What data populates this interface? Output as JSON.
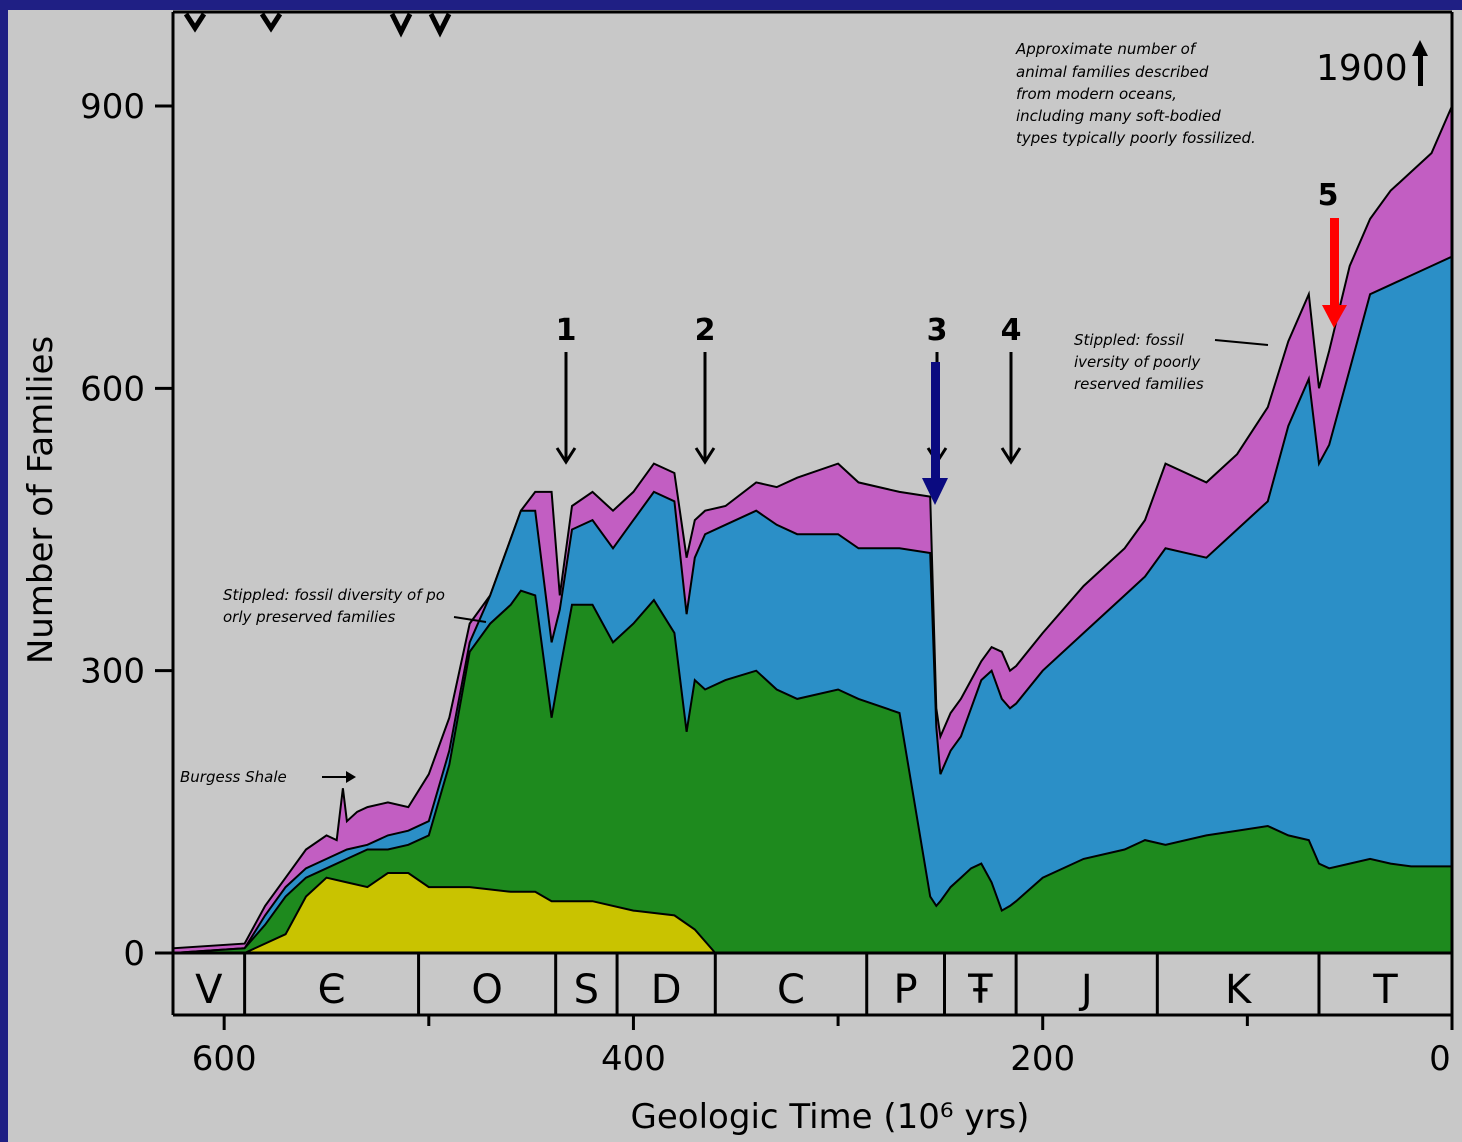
{
  "chart_data": {
    "type": "area",
    "title": "",
    "xlabel": "Geologic Time (10⁶ yrs)",
    "ylabel": "Number of Families",
    "xlim": [
      625,
      0
    ],
    "ylim": [
      0,
      1000
    ],
    "x_ticks": [
      "600",
      "400",
      "200",
      "0"
    ],
    "y_ticks": [
      "0",
      "300",
      "600",
      "900"
    ],
    "periods": [
      "V",
      "Є",
      "O",
      "S",
      "D",
      "C",
      "P",
      "Ŧ",
      "J",
      "K",
      "T"
    ],
    "period_boundaries": [
      625,
      590,
      505,
      438,
      408,
      360,
      286,
      248,
      213,
      144,
      65,
      0
    ],
    "series": [
      {
        "color": "#c9c300",
        "x": [
          590,
          570,
          560,
          550,
          540,
          530,
          520,
          510,
          500,
          490,
          480,
          460,
          448,
          440,
          420,
          400,
          380,
          370,
          360,
          340,
          300,
          250,
          200,
          100,
          0
        ],
        "y": [
          0,
          20,
          60,
          80,
          75,
          70,
          85,
          85,
          70,
          70,
          70,
          65,
          65,
          55,
          55,
          45,
          40,
          25,
          0,
          0,
          0,
          0,
          0,
          0,
          0
        ]
      },
      {
        "color": "#1e8a1e",
        "x": [
          625,
          590,
          580,
          570,
          560,
          550,
          540,
          530,
          520,
          510,
          500,
          490,
          480,
          470,
          460,
          455,
          448,
          440,
          436,
          430,
          420,
          410,
          400,
          390,
          380,
          374,
          370,
          365,
          355,
          340,
          330,
          320,
          300,
          290,
          270,
          255,
          252,
          250,
          245,
          240,
          235,
          230,
          225,
          220,
          216,
          213,
          200,
          180,
          160,
          150,
          140,
          120,
          105,
          90,
          80,
          70,
          65,
          60,
          50,
          40,
          30,
          20,
          10,
          0
        ],
        "y": [
          0,
          5,
          30,
          60,
          80,
          90,
          100,
          110,
          110,
          115,
          125,
          200,
          320,
          350,
          370,
          385,
          380,
          250,
          300,
          370,
          370,
          330,
          350,
          375,
          340,
          235,
          290,
          280,
          290,
          300,
          280,
          270,
          280,
          270,
          255,
          60,
          50,
          55,
          70,
          80,
          90,
          95,
          75,
          45,
          50,
          55,
          80,
          100,
          110,
          120,
          115,
          125,
          130,
          135,
          125,
          120,
          95,
          90,
          95,
          100,
          95,
          92,
          92,
          92
        ]
      },
      {
        "color": "#2b8fc7",
        "x": [
          625,
          590,
          580,
          570,
          560,
          550,
          540,
          530,
          520,
          510,
          500,
          490,
          480,
          470,
          460,
          455,
          448,
          440,
          436,
          430,
          420,
          410,
          400,
          390,
          380,
          374,
          370,
          365,
          355,
          340,
          330,
          320,
          300,
          290,
          270,
          255,
          252,
          250,
          245,
          240,
          235,
          230,
          225,
          220,
          216,
          213,
          200,
          180,
          160,
          150,
          140,
          120,
          105,
          90,
          80,
          70,
          65,
          60,
          50,
          40,
          30,
          20,
          10,
          0
        ],
        "y": [
          0,
          5,
          40,
          70,
          90,
          100,
          110,
          115,
          125,
          130,
          140,
          215,
          330,
          380,
          440,
          470,
          470,
          330,
          365,
          450,
          460,
          430,
          460,
          490,
          480,
          360,
          420,
          445,
          455,
          470,
          455,
          445,
          445,
          430,
          430,
          425,
          240,
          190,
          215,
          230,
          260,
          290,
          300,
          270,
          260,
          265,
          300,
          340,
          380,
          400,
          430,
          420,
          450,
          480,
          560,
          610,
          520,
          540,
          620,
          700,
          710,
          720,
          730,
          740
        ]
      },
      {
        "color": "#c25ec2",
        "x": [
          625,
          590,
          580,
          570,
          560,
          550,
          545,
          542,
          540,
          535,
          530,
          520,
          510,
          500,
          490,
          480,
          470,
          460,
          455,
          448,
          440,
          436,
          430,
          420,
          410,
          400,
          390,
          380,
          374,
          370,
          365,
          355,
          340,
          330,
          320,
          300,
          290,
          270,
          255,
          252,
          250,
          245,
          240,
          235,
          230,
          225,
          220,
          216,
          213,
          200,
          180,
          160,
          150,
          140,
          120,
          105,
          90,
          80,
          70,
          65,
          60,
          50,
          40,
          30,
          20,
          10,
          0
        ],
        "y": [
          5,
          10,
          50,
          80,
          110,
          125,
          120,
          175,
          140,
          150,
          155,
          160,
          155,
          190,
          250,
          350,
          380,
          440,
          470,
          490,
          490,
          380,
          475,
          490,
          470,
          490,
          520,
          510,
          420,
          460,
          470,
          475,
          500,
          495,
          505,
          520,
          500,
          490,
          485,
          260,
          230,
          255,
          270,
          290,
          310,
          325,
          320,
          300,
          305,
          340,
          390,
          430,
          460,
          520,
          500,
          530,
          580,
          650,
          700,
          600,
          640,
          730,
          780,
          810,
          830,
          850,
          900
        ]
      }
    ],
    "annotations": [
      "Burgess Shale",
      "Stippled: fossil diversity of poorly preserved families",
      "Stippled: fossil diversity of poorly preserved families",
      "Approximate number of animal families described from modern oceans, including many soft-bodied types typically poorly fossilized.",
      "1900"
    ],
    "extinction_markers": [
      {
        "label": "1",
        "x": 440
      },
      {
        "label": "2",
        "x": 370
      },
      {
        "label": "3",
        "x": 250
      },
      {
        "label": "4",
        "x": 216
      },
      {
        "label": "5",
        "x": 65
      }
    ],
    "grid": false,
    "legend": "none"
  },
  "colors": {
    "background": "#c8c8c8",
    "border": "#1f1f84",
    "red_arrow": "#ff0000",
    "blue_arrow": "#0a0a80"
  }
}
